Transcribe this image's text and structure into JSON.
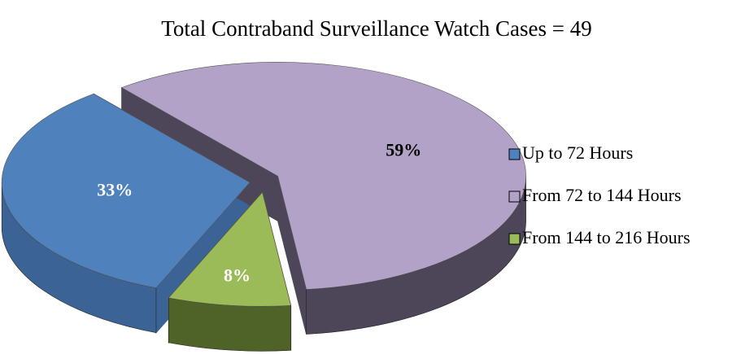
{
  "chart_data": {
    "type": "pie3d",
    "title": "Total Contraband Surveillance Watch Cases = 49",
    "categories": [
      "Up to 72 Hours",
      "From 72 to 144 Hours",
      "From 144 to 216 Hours"
    ],
    "values": [
      33,
      59,
      8
    ],
    "value_labels": [
      "33%",
      "59%",
      "8%"
    ],
    "colors": [
      "#4f81bd",
      "#b3a2c7",
      "#9bbb59"
    ],
    "side_colors": [
      "#3b6395",
      "#4d4658",
      "#4f6228"
    ],
    "label_colors": [
      "#ffffff",
      "#000000",
      "#ffffff"
    ],
    "legend": "right"
  }
}
